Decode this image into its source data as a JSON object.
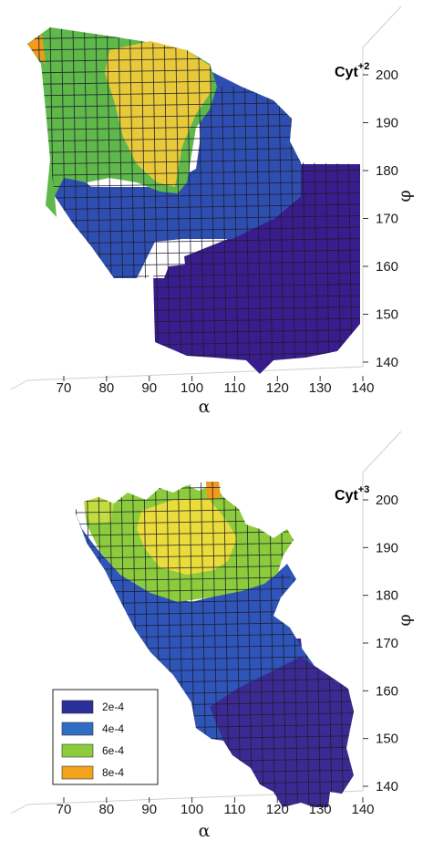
{
  "colors": {
    "level_1": "#3a1d8c",
    "level_2": "#2f4fb0",
    "level_3": "#5fb84a",
    "level_4": "#e8c93a",
    "level_5": "#f0a020"
  },
  "legend": {
    "entries": [
      {
        "label": "2e-4",
        "color": "#2a2f9a"
      },
      {
        "label": "4e-4",
        "color": "#2f6cc4"
      },
      {
        "label": "6e-4",
        "color": "#8ccc3a"
      },
      {
        "label": "8e-4",
        "color": "#f4a21c"
      }
    ]
  },
  "chart_data": [
    {
      "type": "heatmap",
      "title": "Cyt",
      "title_superscript": "+2",
      "xlabel": "α",
      "ylabel": "φ",
      "xlim": [
        70,
        140
      ],
      "ylim": [
        140,
        205
      ],
      "x_ticks": [
        "70",
        "80",
        "90",
        "100",
        "110",
        "120",
        "130",
        "140"
      ],
      "y_ticks": [
        "200",
        "190",
        "180",
        "170",
        "160",
        "150",
        "140"
      ],
      "grid": true
    },
    {
      "type": "heatmap",
      "title": "Cyt",
      "title_superscript": "+3",
      "xlabel": "α",
      "ylabel": "φ",
      "xlim": [
        70,
        140
      ],
      "ylim": [
        140,
        205
      ],
      "x_ticks": [
        "70",
        "80",
        "90",
        "100",
        "110",
        "120",
        "130",
        "140"
      ],
      "y_ticks": [
        "200",
        "190",
        "180",
        "170",
        "160",
        "150",
        "140"
      ],
      "grid": true,
      "legend_position": "bottom-left"
    }
  ]
}
